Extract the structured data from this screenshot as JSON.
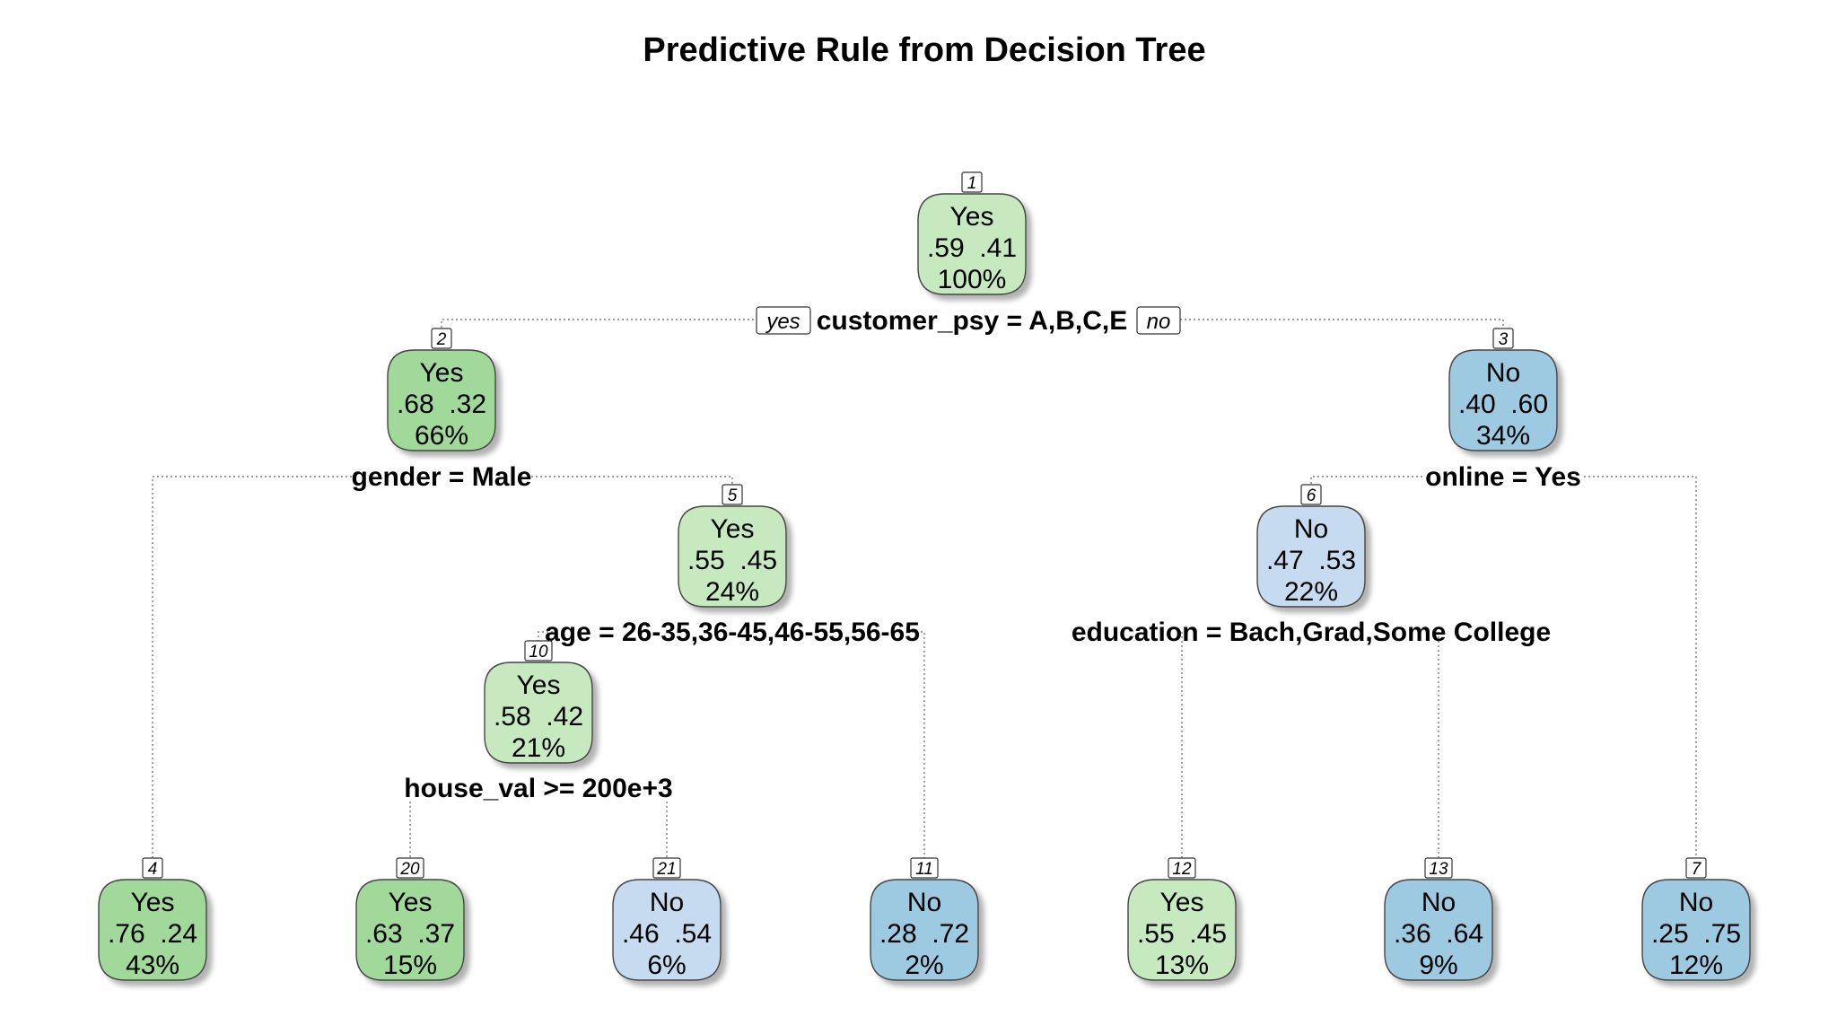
{
  "title": "Predictive Rule from Decision Tree",
  "colors": {
    "yes_strong": "#a1d99b",
    "yes_light": "#c7e9c0",
    "no_light": "#c6dbef",
    "no_strong": "#9ecae1"
  },
  "branch_labels": {
    "yes": "yes",
    "no": "no"
  },
  "nodes": [
    {
      "id": "1",
      "label": "Yes",
      "probs": ".59  .41",
      "pct": "100%",
      "fill": "yes_light"
    },
    {
      "id": "2",
      "label": "Yes",
      "probs": ".68  .32",
      "pct": "66%",
      "fill": "yes_strong"
    },
    {
      "id": "3",
      "label": "No",
      "probs": ".40  .60",
      "pct": "34%",
      "fill": "no_strong"
    },
    {
      "id": "5",
      "label": "Yes",
      "probs": ".55  .45",
      "pct": "24%",
      "fill": "yes_light"
    },
    {
      "id": "6",
      "label": "No",
      "probs": ".47  .53",
      "pct": "22%",
      "fill": "no_light"
    },
    {
      "id": "10",
      "label": "Yes",
      "probs": ".58  .42",
      "pct": "21%",
      "fill": "yes_light"
    },
    {
      "id": "4",
      "label": "Yes",
      "probs": ".76  .24",
      "pct": "43%",
      "fill": "yes_strong"
    },
    {
      "id": "20",
      "label": "Yes",
      "probs": ".63  .37",
      "pct": "15%",
      "fill": "yes_strong"
    },
    {
      "id": "21",
      "label": "No",
      "probs": ".46  .54",
      "pct": "6%",
      "fill": "no_light"
    },
    {
      "id": "11",
      "label": "No",
      "probs": ".28  .72",
      "pct": "2%",
      "fill": "no_strong"
    },
    {
      "id": "12",
      "label": "Yes",
      "probs": ".55  .45",
      "pct": "13%",
      "fill": "yes_light"
    },
    {
      "id": "13",
      "label": "No",
      "probs": ".36  .64",
      "pct": "9%",
      "fill": "no_strong"
    },
    {
      "id": "7",
      "label": "No",
      "probs": ".25  .75",
      "pct": "12%",
      "fill": "no_strong"
    }
  ],
  "splits": [
    {
      "node": "1",
      "rule": "customer_psy = A,B,C,E"
    },
    {
      "node": "2",
      "rule": "gender = Male"
    },
    {
      "node": "3",
      "rule": "online = Yes"
    },
    {
      "node": "5",
      "rule": "age = 26-35,36-45,46-55,56-65"
    },
    {
      "node": "6",
      "rule": "education = Bach,Grad,Some College"
    },
    {
      "node": "10",
      "rule": "house_val >= 200e+3"
    }
  ]
}
